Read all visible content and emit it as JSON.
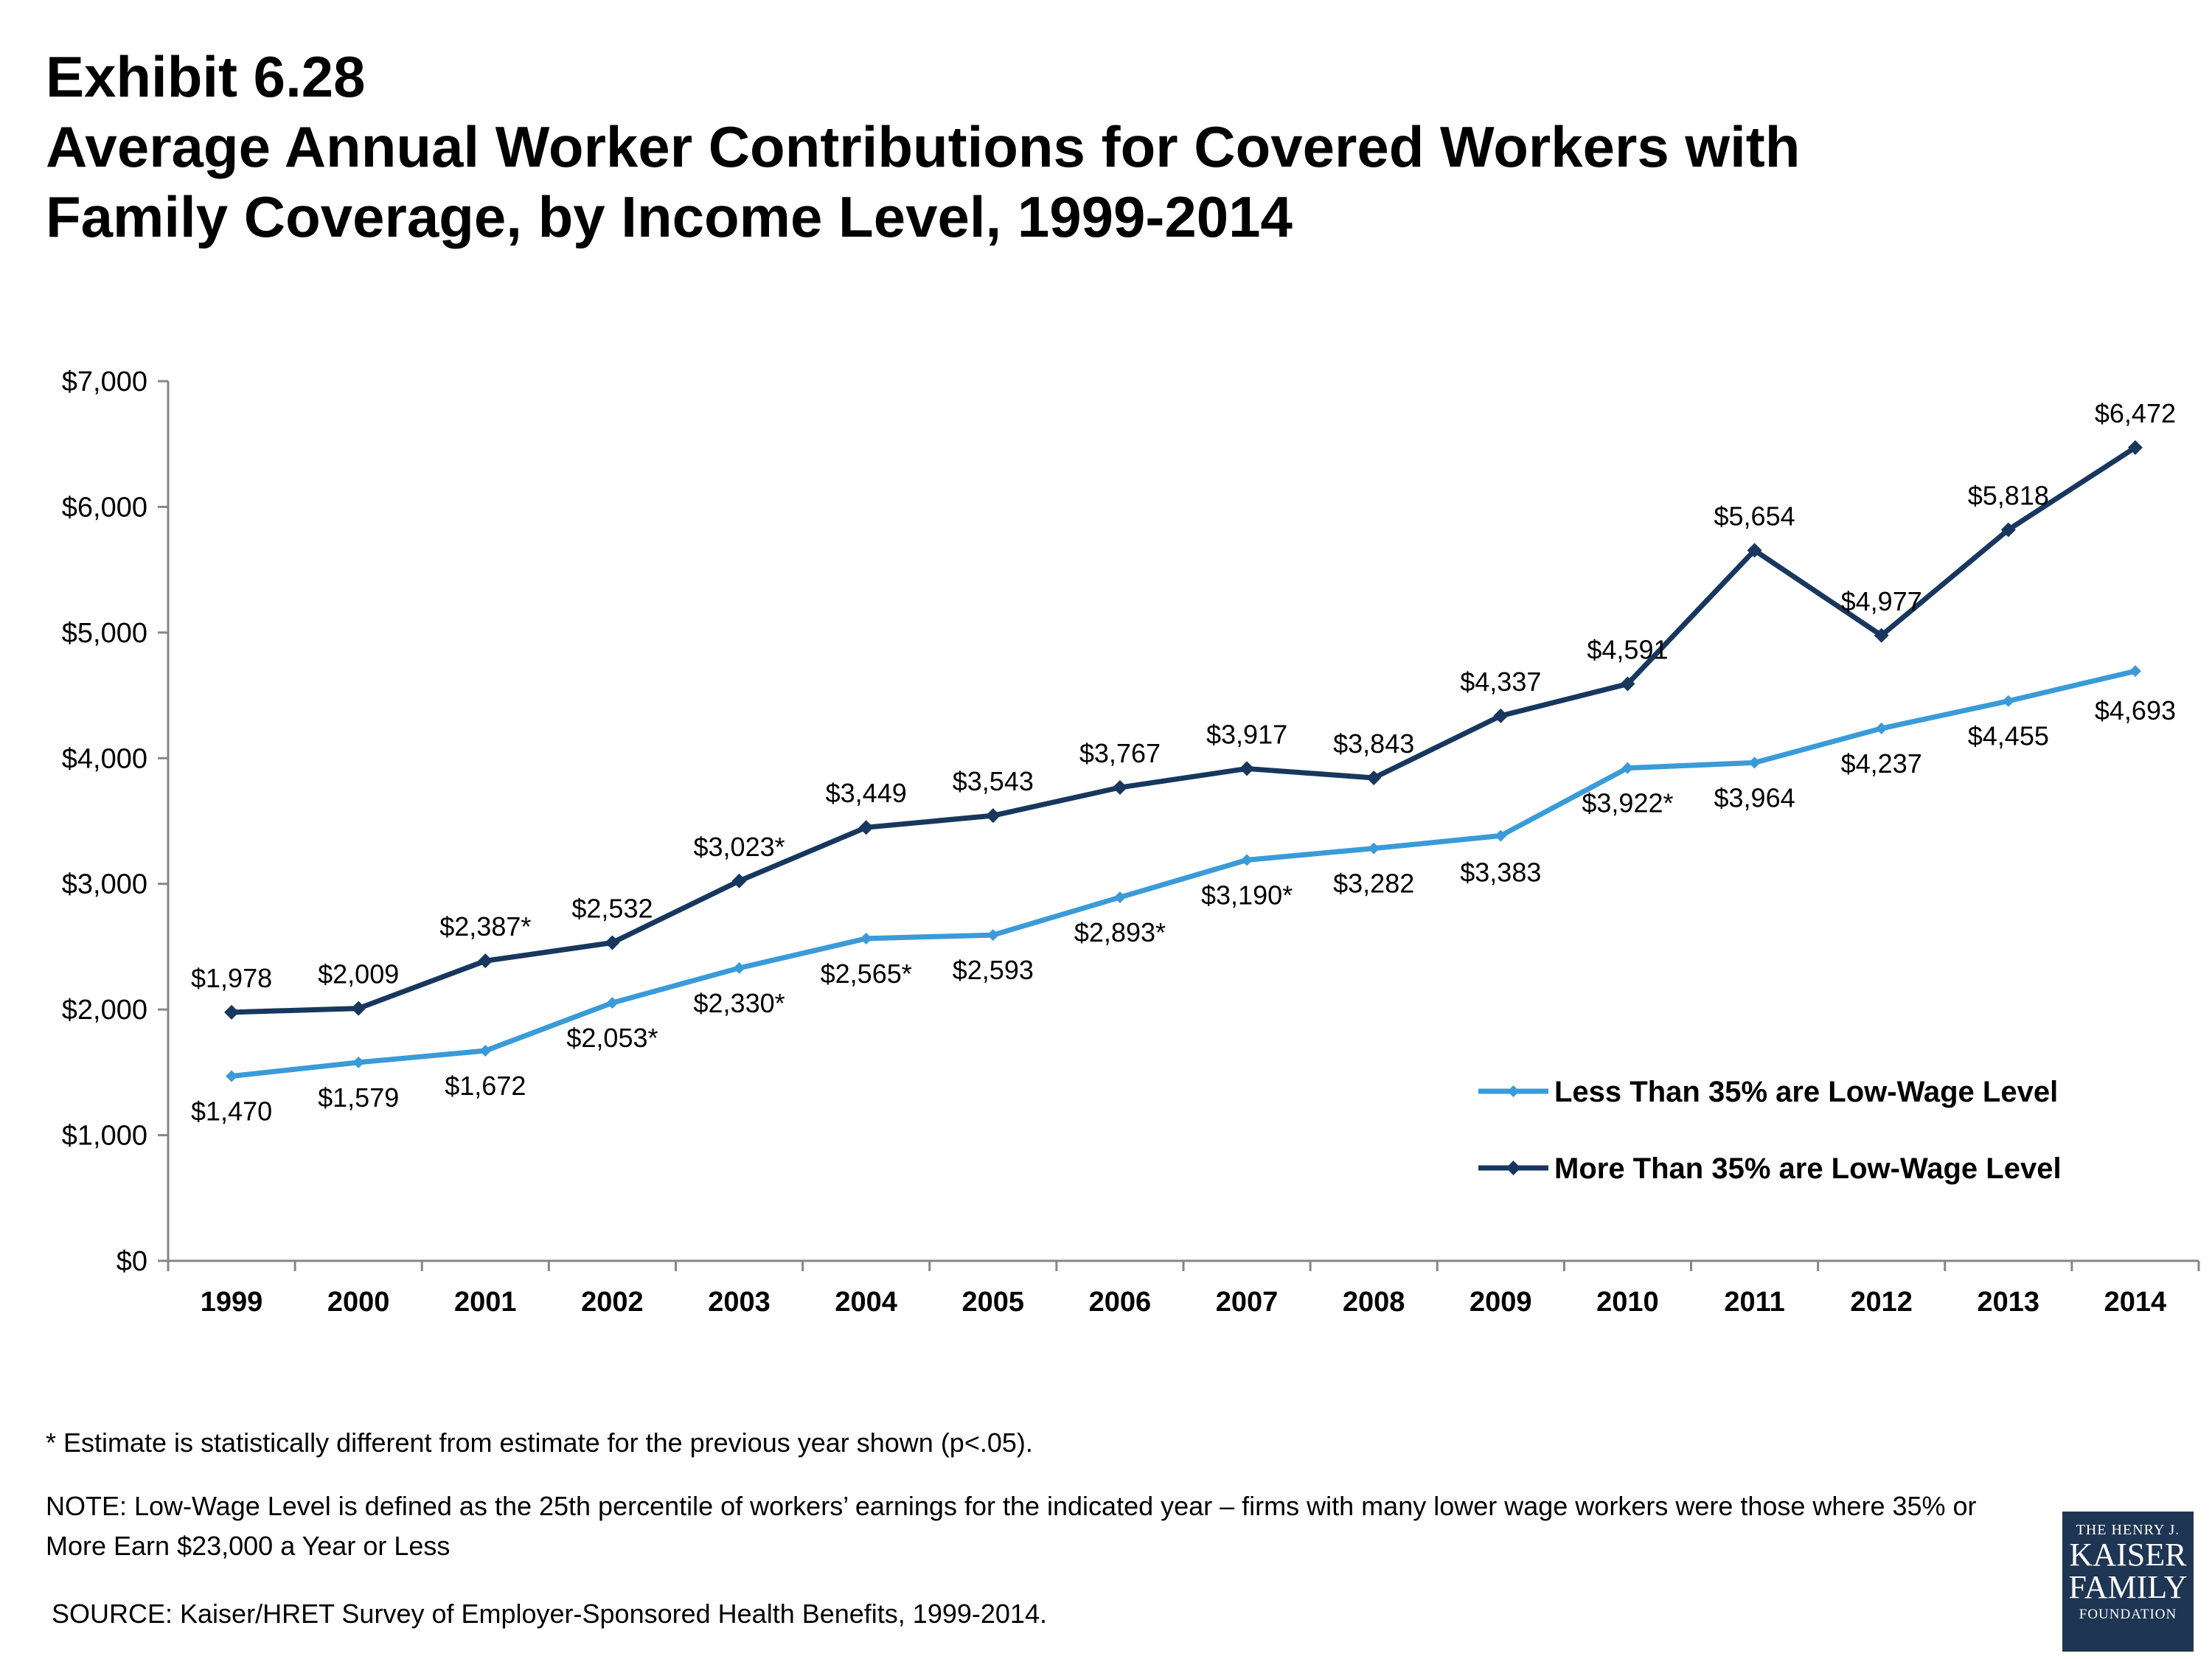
{
  "exhibit": "Exhibit 6.28",
  "title_line1": "Average Annual Worker Contributions for Covered Workers with",
  "title_line2": "Family Coverage, by Income Level, 1999-2014",
  "chart_data": {
    "type": "line",
    "categories": [
      "1999",
      "2000",
      "2001",
      "2002",
      "2003",
      "2004",
      "2005",
      "2006",
      "2007",
      "2008",
      "2009",
      "2010",
      "2011",
      "2012",
      "2013",
      "2014"
    ],
    "ylim": [
      0,
      7000
    ],
    "yticks": [
      0,
      1000,
      2000,
      3000,
      4000,
      5000,
      6000,
      7000
    ],
    "ytick_labels": [
      "$0",
      "$1,000",
      "$2,000",
      "$3,000",
      "$4,000",
      "$5,000",
      "$6,000",
      "$7,000"
    ],
    "legend_position": "right",
    "grid": false,
    "series": [
      {
        "name": "Less Than 35% are Low-Wage Level",
        "color": "#3a9bd8",
        "values": [
          1470,
          1579,
          1672,
          2053,
          2330,
          2565,
          2593,
          2893,
          3190,
          3282,
          3383,
          3922,
          3964,
          4237,
          4455,
          4693
        ],
        "labels": [
          "$1,470",
          "$1,579",
          "$1,672",
          "$2,053*",
          "$2,330*",
          "$2,565*",
          "$2,593",
          "$2,893*",
          "$3,190*",
          "$3,282",
          "$3,383",
          "$3,922*",
          "$3,964",
          "$4,237",
          "$4,455",
          "$4,693"
        ]
      },
      {
        "name": "More Than 35% are Low-Wage Level",
        "color": "#17375e",
        "values": [
          1978,
          2009,
          2387,
          2532,
          3023,
          3449,
          3543,
          3767,
          3917,
          3843,
          4337,
          4591,
          5654,
          4977,
          5818,
          6472
        ],
        "labels": [
          "$1,978",
          "$2,009",
          "$2,387*",
          "$2,532",
          "$3,023*",
          "$3,449",
          "$3,543",
          "$3,767",
          "$3,917",
          "$3,843",
          "$4,337",
          "$4,591",
          "$5,654",
          "$4,977",
          "$5,818",
          "$6,472"
        ]
      }
    ]
  },
  "footnotes": {
    "asterisk": "* Estimate is statistically different from estimate for the previous year shown (p<.05).",
    "note": "NOTE: Low-Wage Level is defined as the 25th percentile of workers’ earnings for the indicated year – firms with many lower wage workers were those where 35% or More Earn $23,000 a Year or Less",
    "source": "SOURCE:  Kaiser/HRET Survey of Employer-Sponsored Health Benefits, 1999-2014."
  },
  "logo": {
    "line1": "THE HENRY J.",
    "line2": "KAISER",
    "line3": "FAMILY",
    "line4": "FOUNDATION"
  }
}
